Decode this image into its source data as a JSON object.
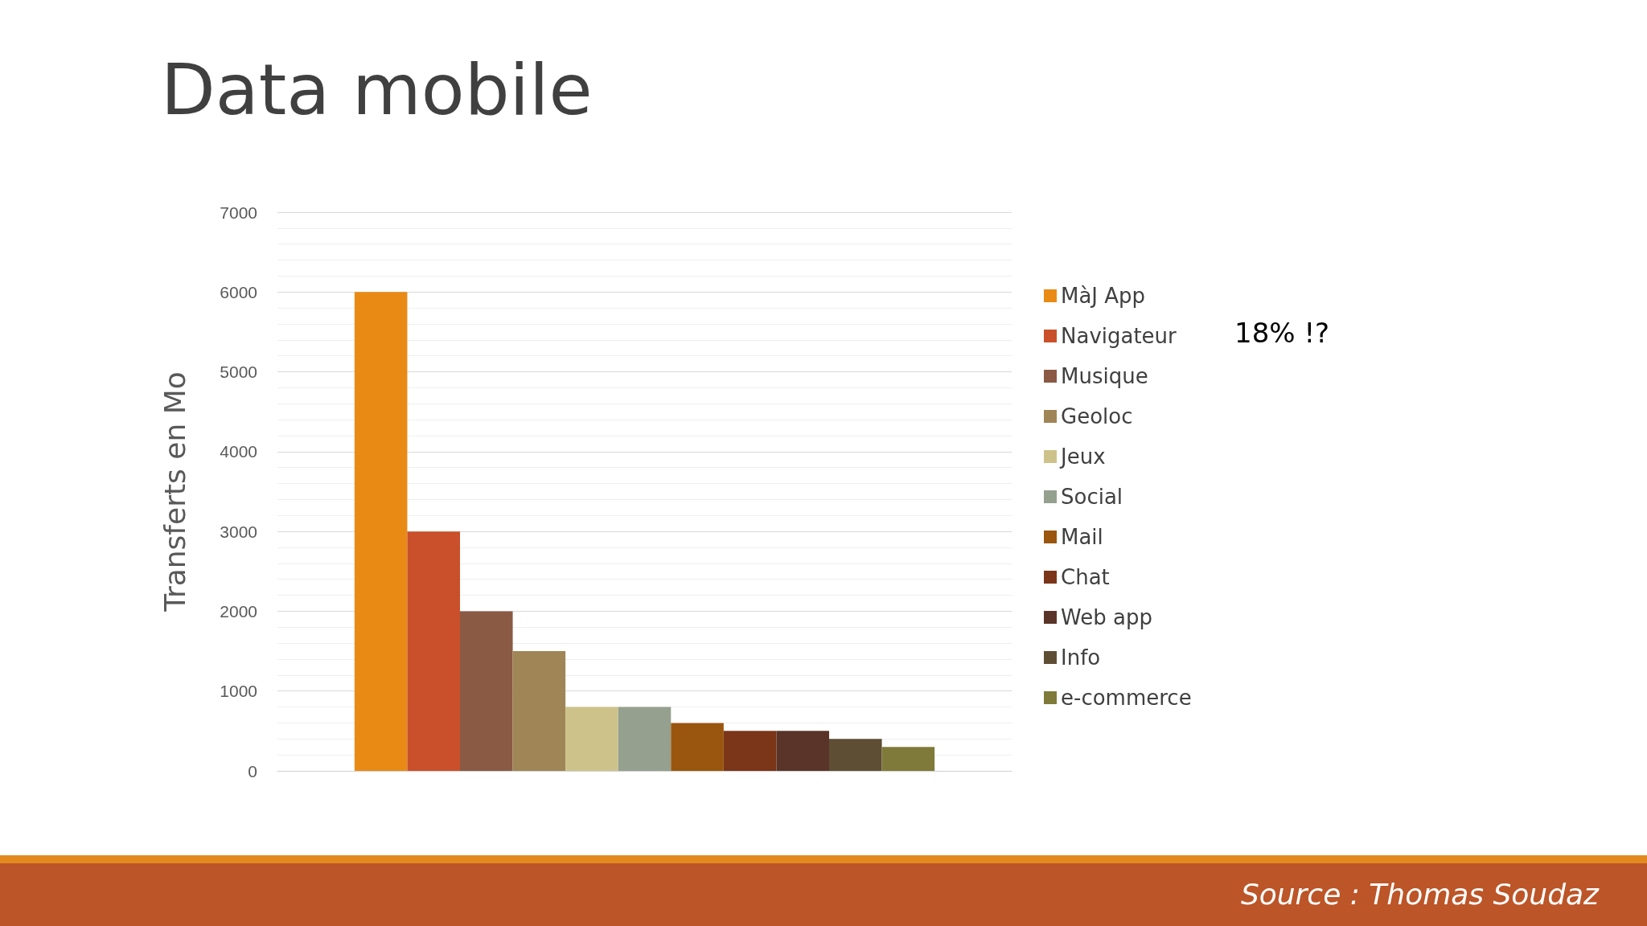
{
  "chart_data": {
    "type": "bar",
    "title": "Data mobile",
    "ylabel": "Transferts en Mo",
    "categories": [
      null
    ],
    "series": [
      {
        "name": "MàJ App",
        "color": "#e98a15",
        "values": [
          6000
        ]
      },
      {
        "name": "Navigateur",
        "color": "#c9502a",
        "values": [
          3000
        ]
      },
      {
        "name": "Musique",
        "color": "#8a5a44",
        "values": [
          2000
        ]
      },
      {
        "name": "Geoloc",
        "color": "#a08556",
        "values": [
          1500
        ]
      },
      {
        "name": "Jeux",
        "color": "#cdc38a",
        "values": [
          800
        ]
      },
      {
        "name": "Social",
        "color": "#95a08e",
        "values": [
          800
        ]
      },
      {
        "name": "Mail",
        "color": "#9a560e",
        "values": [
          600
        ]
      },
      {
        "name": "Chat",
        "color": "#7b3519",
        "values": [
          500
        ]
      },
      {
        "name": "Web app",
        "color": "#5a3428",
        "values": [
          500
        ]
      },
      {
        "name": "Info",
        "color": "#5e4e34",
        "values": [
          400
        ]
      },
      {
        "name": "e-commerce",
        "color": "#7f7a3a",
        "values": [
          300
        ]
      }
    ],
    "ylim": [
      0,
      7000
    ],
    "yticks": [
      0,
      1000,
      2000,
      3000,
      4000,
      5000,
      6000,
      7000
    ],
    "grid": true,
    "legend": "right",
    "annotations": [
      "18% !?",
      "Source : Thomas Soudaz"
    ]
  }
}
